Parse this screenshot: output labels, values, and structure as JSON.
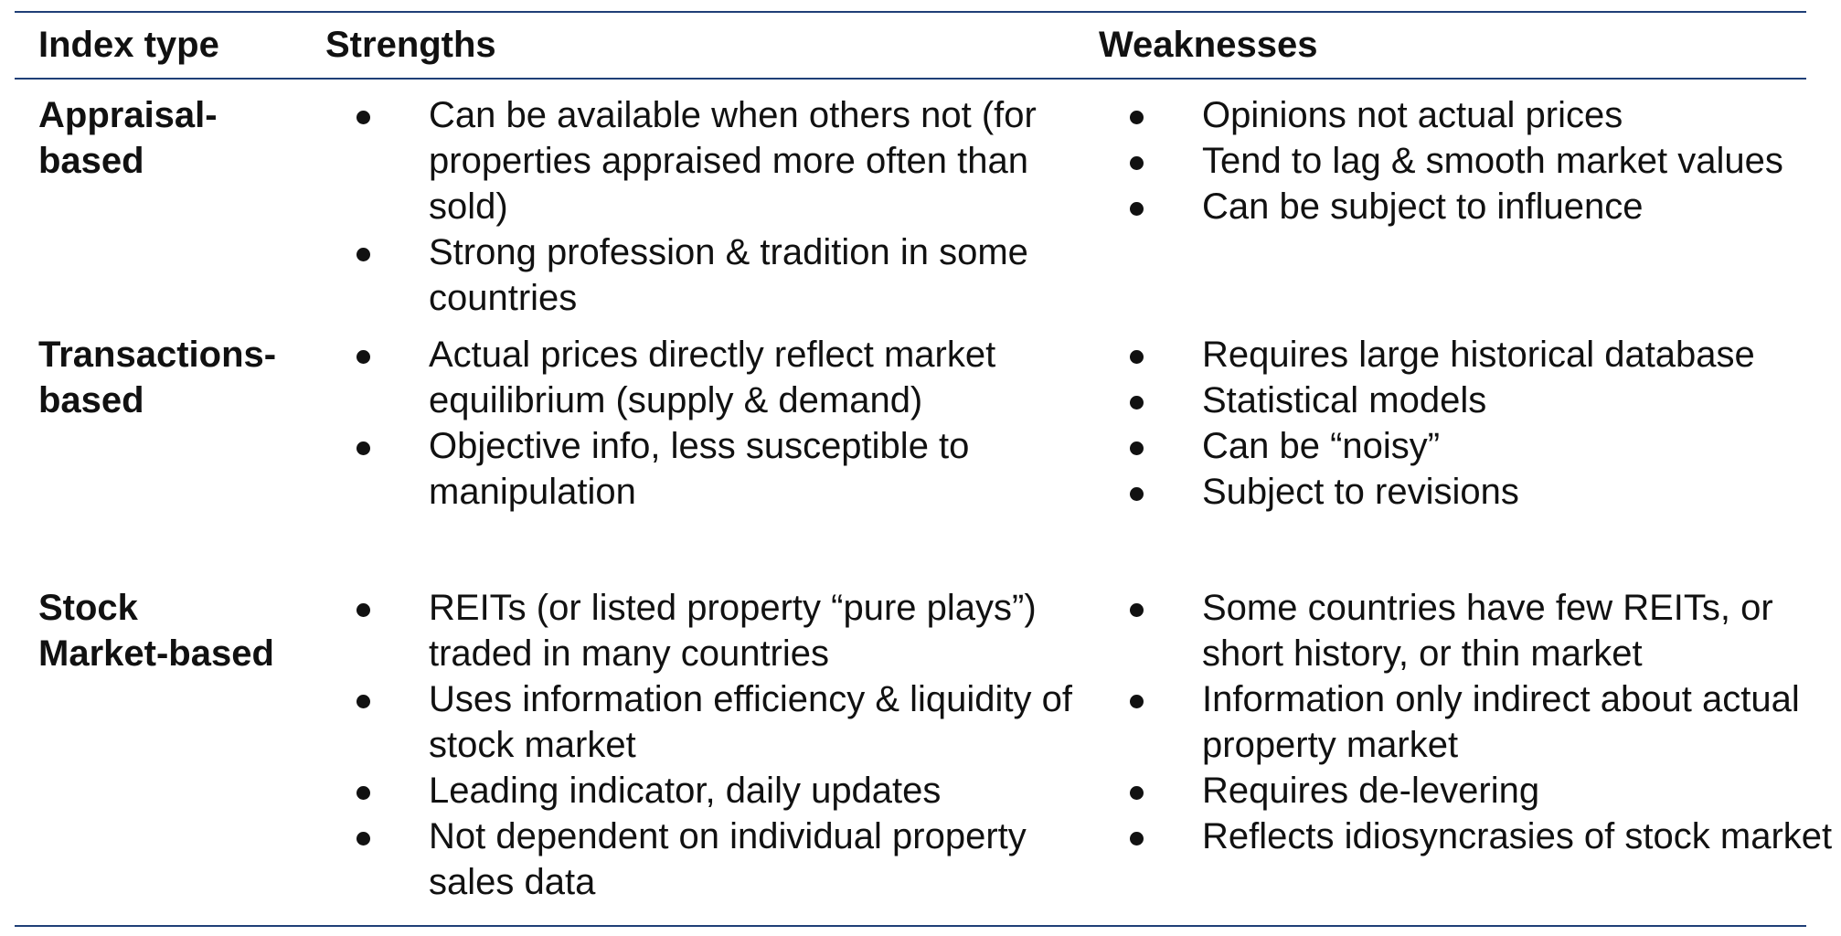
{
  "header": {
    "index_type": "Index type",
    "strengths": "Strengths",
    "weaknesses": "Weaknesses"
  },
  "rows": [
    {
      "type": "Appraisal-\nbased",
      "strengths": [
        "Can be available when others not (for properties appraised more often than sold)",
        "Strong profession & tradition in some countries"
      ],
      "weaknesses": [
        "Opinions not actual prices",
        "Tend to lag & smooth market values",
        "Can be subject to influence"
      ]
    },
    {
      "type": "Transactions-\nbased",
      "strengths": [
        "Actual prices directly reflect market equilibrium (supply & demand)",
        "Objective info, less susceptible to manipulation"
      ],
      "weaknesses": [
        "Requires large historical database",
        "Statistical models",
        "Can be “noisy”",
        "Subject to revisions"
      ]
    },
    {
      "type": "Stock\nMarket-based",
      "strengths": [
        "REITs (or listed property “pure plays”) traded in many countries",
        "Uses information efficiency & liquidity of stock market",
        "Leading indicator, daily updates",
        "Not dependent on individual property sales data"
      ],
      "weaknesses": [
        "Some countries have few REITs, or short history, or thin market",
        "Information only indirect about actual property market",
        "Requires de-levering",
        "Reflects idiosyncrasies of stock market"
      ]
    }
  ]
}
